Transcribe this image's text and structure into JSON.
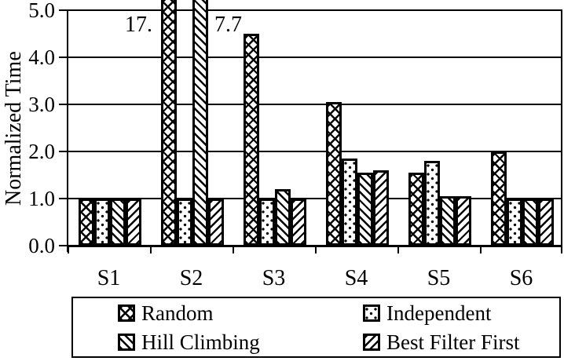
{
  "chart_data": {
    "type": "bar",
    "title": "",
    "ylabel": "Normalized Time",
    "xlabel": "",
    "categories": [
      "S1",
      "S2",
      "S3",
      "S4",
      "S5",
      "S6"
    ],
    "series": [
      {
        "name": "Random",
        "pattern": "crosshatch",
        "values": [
          1.0,
          17.0,
          4.5,
          3.05,
          1.55,
          2.0
        ]
      },
      {
        "name": "Independent",
        "pattern": "dots",
        "values": [
          1.0,
          1.0,
          1.0,
          1.85,
          1.8,
          1.0
        ]
      },
      {
        "name": "Hill Climbing",
        "pattern": "diagonal-forward",
        "values": [
          1.0,
          7.7,
          1.2,
          1.55,
          1.05,
          1.0
        ]
      },
      {
        "name": "Best Filter First",
        "pattern": "diagonal-backward",
        "values": [
          1.0,
          1.0,
          1.0,
          1.6,
          1.05,
          1.0
        ]
      }
    ],
    "ylim": [
      0,
      5
    ],
    "ytick_labels": [
      "0.0",
      "1.0",
      "2.0",
      "3.0",
      "4.0",
      "5.0"
    ],
    "grid": true,
    "legend_position": "bottom-box",
    "bars_clipped_at_top": [
      "S2 Random",
      "S2 Hill Climbing"
    ],
    "annotations": [
      {
        "text": "17.",
        "series": "Random",
        "category": "S2",
        "side": "left"
      },
      {
        "text": "7.7",
        "series": "Hill Climbing",
        "category": "S2",
        "side": "right"
      }
    ],
    "colors": {
      "foreground": "#000000",
      "background": "#ffffff"
    }
  }
}
